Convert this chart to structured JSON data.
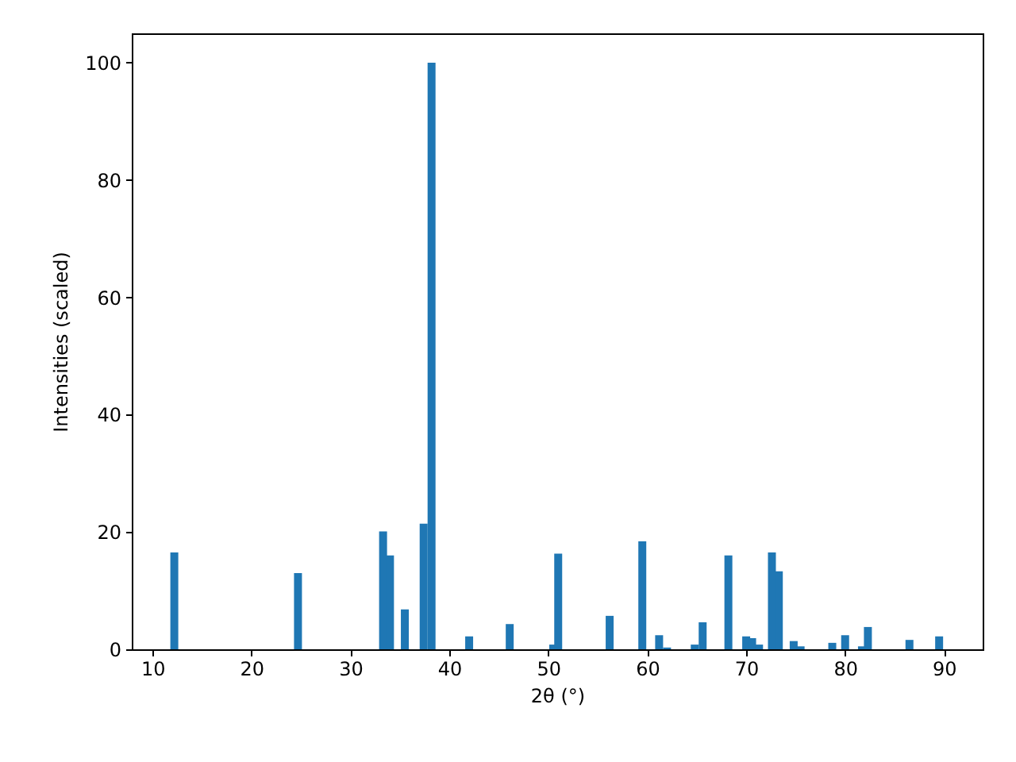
{
  "chart_data": {
    "type": "bar",
    "xlabel": "2θ (°)",
    "ylabel": "Intensities (scaled)",
    "x": [
      12.2,
      24.7,
      33.3,
      34.0,
      35.5,
      37.4,
      38.2,
      42.0,
      46.1,
      50.5,
      51.0,
      56.2,
      59.5,
      61.2,
      62.0,
      64.8,
      65.6,
      68.2,
      70.0,
      70.6,
      71.3,
      72.6,
      73.3,
      74.8,
      75.5,
      78.7,
      80.0,
      81.7,
      82.3,
      86.5,
      89.5
    ],
    "series": [
      {
        "color": "#1f77b4",
        "values": [
          16.5,
          13.0,
          20.1,
          16.0,
          6.8,
          21.4,
          100,
          2.2,
          4.3,
          0.8,
          16.3,
          5.7,
          18.4,
          2.4,
          0.3,
          0.8,
          4.6,
          16.0,
          2.2,
          1.9,
          0.8,
          16.5,
          13.3,
          1.4,
          0.5,
          1.1,
          2.4,
          0.5,
          3.8,
          1.6,
          2.2
        ]
      }
    ],
    "xlim": [
      7.9,
      93.9
    ],
    "ylim": [
      0,
      105
    ],
    "xticks": [
      10,
      20,
      30,
      40,
      50,
      60,
      70,
      80,
      90
    ],
    "yticks": [
      0,
      20,
      40,
      60,
      80,
      100
    ],
    "grid": false
  }
}
